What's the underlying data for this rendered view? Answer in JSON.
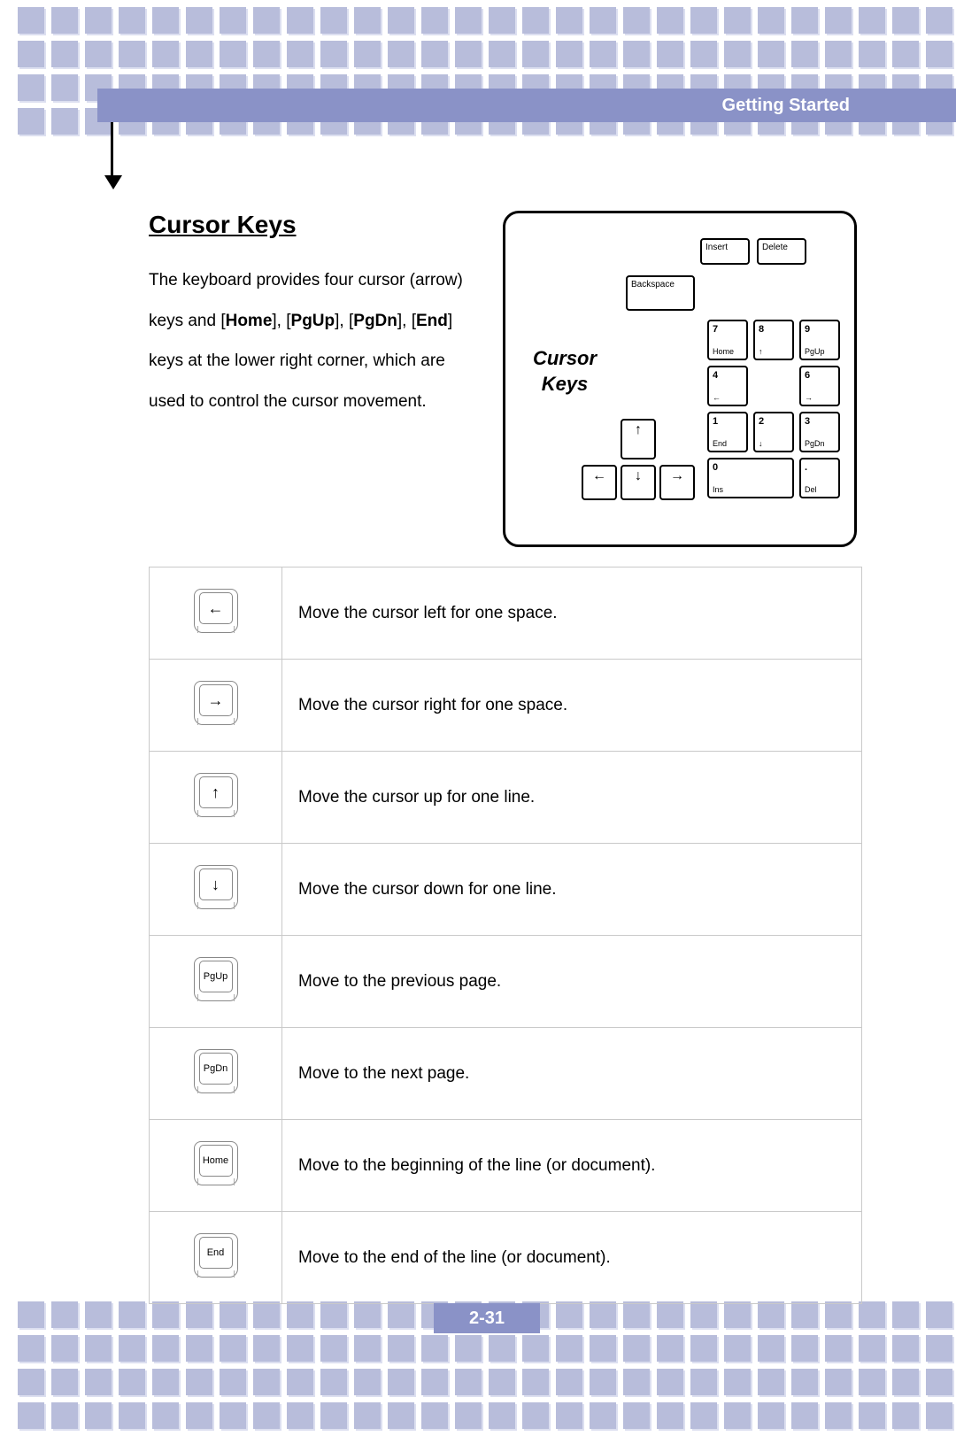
{
  "header": {
    "title": "Getting Started"
  },
  "section": {
    "title": "Cursor Keys",
    "intro_parts": {
      "p1": "The keyboard provides four cursor (arrow) keys and [",
      "b1": "Home",
      "p2": "], [",
      "b2": "PgUp",
      "p3": "], [",
      "b3": "PgDn",
      "p4": "], [",
      "b4": "End",
      "p5": "] keys at the lower right corner, which are used to control the cursor movement."
    }
  },
  "diagram": {
    "label_line1": "Cursor",
    "label_line2": "Keys",
    "keys": {
      "insert": "Insert",
      "delete": "Delete",
      "backspace": "Backspace",
      "k7t": "7",
      "k7b": "Home",
      "k8t": "8",
      "k8b": "↑",
      "k9t": "9",
      "k9b": "PgUp",
      "k4t": "4",
      "k4b": "←",
      "k6t": "6",
      "k6b": "→",
      "k1t": "1",
      "k1b": "End",
      "k2t": "2",
      "k2b": "↓",
      "k3t": "3",
      "k3b": "PgDn",
      "k0t": "0",
      "k0b": "Ins",
      "kdt": ".",
      "kdb": "Del",
      "up": "↑",
      "left": "←",
      "down": "↓",
      "right": "→"
    }
  },
  "table": {
    "rows": [
      {
        "key_type": "arrow",
        "key_label": "←",
        "desc": "Move the cursor left for one space."
      },
      {
        "key_type": "arrow",
        "key_label": "→",
        "desc": "Move the cursor right for one space."
      },
      {
        "key_type": "arrow",
        "key_label": "↑",
        "desc": "Move the cursor up for one line."
      },
      {
        "key_type": "arrow",
        "key_label": "↓",
        "desc": "Move the cursor down for one line."
      },
      {
        "key_type": "text",
        "key_label": "PgUp",
        "desc": "Move to the previous page."
      },
      {
        "key_type": "text",
        "key_label": "PgDn",
        "desc": "Move to the next page."
      },
      {
        "key_type": "text",
        "key_label": "Home",
        "desc": "Move to the beginning of the line (or document)."
      },
      {
        "key_type": "text",
        "key_label": "End",
        "desc": "Move to the end of the line (or document)."
      }
    ]
  },
  "page_number": "2-31",
  "style": {
    "accent_color": "#8a92c7",
    "deco_color": "#b8bddb",
    "deco_shadow": "#dcdff0",
    "border_color": "#c9c9c9",
    "text_color": "#000000",
    "header_text_color": "#ffffff",
    "body_fontsize": 19,
    "title_fontsize": 28
  }
}
